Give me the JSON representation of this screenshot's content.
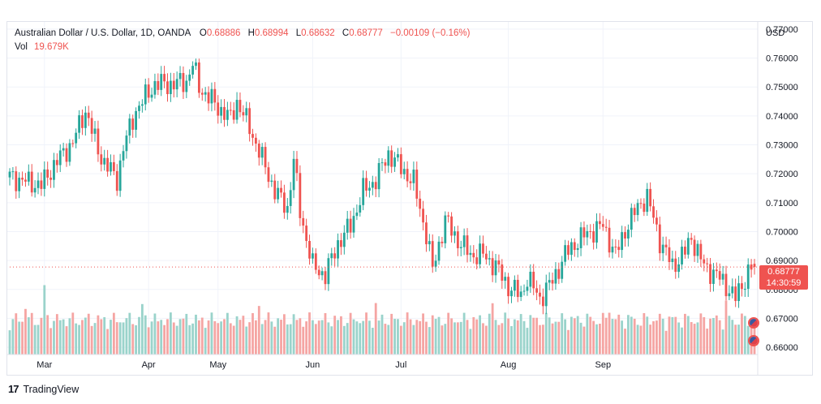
{
  "legend": {
    "symbol": "Australian Dollar / U.S. Dollar, 1D, OANDA",
    "o_key": "O",
    "o_val": "0.68886",
    "h_key": "H",
    "h_val": "0.68994",
    "l_key": "L",
    "l_val": "0.68632",
    "c_key": "C",
    "c_val": "0.68777",
    "change": "−0.00109 (−0.16%)",
    "vol_key": "Vol",
    "vol_val": "19.679K"
  },
  "axis": {
    "currency": "USD"
  },
  "last_price": {
    "price": "0.68777",
    "countdown": "14:30:59"
  },
  "footer": {
    "brand": "TradingView",
    "logo_glyph": "17"
  },
  "colors": {
    "up": "#26a69a",
    "down": "#ef5350",
    "vol_up": "#9ad3cb",
    "vol_down": "#f5a5a3"
  },
  "chart_data": {
    "type": "candlestick",
    "y_ticks": [
      "0.66000",
      "0.67000",
      "0.68000",
      "0.69000",
      "0.70000",
      "0.71000",
      "0.72000",
      "0.73000",
      "0.74000",
      "0.75000",
      "0.76000",
      "0.77000"
    ],
    "ylim": [
      0.6575,
      0.7725
    ],
    "x_months": [
      "Mar",
      "Apr",
      "May",
      "Jun",
      "Jul",
      "Aug",
      "Sep"
    ],
    "grid": true,
    "anchors": [
      [
        0,
        0.719
      ],
      [
        6,
        0.717
      ],
      [
        10,
        0.716
      ],
      [
        14,
        0.723
      ],
      [
        20,
        0.731
      ],
      [
        24,
        0.742
      ],
      [
        28,
        0.728
      ],
      [
        30,
        0.724
      ],
      [
        34,
        0.718
      ],
      [
        36,
        0.729
      ],
      [
        40,
        0.742
      ],
      [
        46,
        0.751
      ],
      [
        52,
        0.751
      ],
      [
        56,
        0.752
      ],
      [
        58,
        0.758
      ],
      [
        60,
        0.75
      ],
      [
        66,
        0.743
      ],
      [
        70,
        0.739
      ],
      [
        72,
        0.745
      ],
      [
        76,
        0.736
      ],
      [
        80,
        0.725
      ],
      [
        84,
        0.714
      ],
      [
        88,
        0.708
      ],
      [
        90,
        0.725
      ],
      [
        92,
        0.707
      ],
      [
        96,
        0.688
      ],
      [
        100,
        0.685
      ],
      [
        104,
        0.696
      ],
      [
        108,
        0.702
      ],
      [
        112,
        0.714
      ],
      [
        116,
        0.718
      ],
      [
        120,
        0.727
      ],
      [
        124,
        0.722
      ],
      [
        128,
        0.717
      ],
      [
        132,
        0.699
      ],
      [
        134,
        0.687
      ],
      [
        138,
        0.704
      ],
      [
        142,
        0.697
      ],
      [
        146,
        0.692
      ],
      [
        150,
        0.692
      ],
      [
        154,
        0.688
      ],
      [
        158,
        0.681
      ],
      [
        162,
        0.678
      ],
      [
        164,
        0.684
      ],
      [
        168,
        0.677
      ],
      [
        172,
        0.683
      ],
      [
        176,
        0.692
      ],
      [
        180,
        0.697
      ],
      [
        184,
        0.7
      ],
      [
        188,
        0.702
      ],
      [
        192,
        0.692
      ],
      [
        196,
        0.703
      ],
      [
        200,
        0.71
      ],
      [
        202,
        0.712
      ],
      [
        206,
        0.697
      ],
      [
        210,
        0.688
      ],
      [
        214,
        0.693
      ],
      [
        216,
        0.698
      ],
      [
        220,
        0.688
      ],
      [
        224,
        0.685
      ],
      [
        228,
        0.68
      ],
      [
        230,
        0.677
      ],
      [
        234,
        0.686
      ],
      [
        236,
        0.6889
      ]
    ],
    "last_ohlc": {
      "open": 0.68886,
      "high": 0.68994,
      "low": 0.68632,
      "close": 0.68777
    }
  }
}
